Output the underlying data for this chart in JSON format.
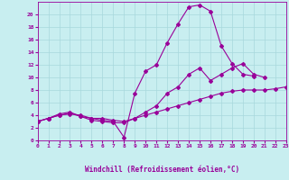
{
  "xlabel": "Windchill (Refroidissement éolien,°C)",
  "bg_color": "#c8eef0",
  "grid_color": "#a8d8dc",
  "line_color": "#990099",
  "xlim": [
    0,
    23
  ],
  "ylim": [
    0,
    22
  ],
  "xticks": [
    0,
    1,
    2,
    3,
    4,
    5,
    6,
    7,
    8,
    9,
    10,
    11,
    12,
    13,
    14,
    15,
    16,
    17,
    18,
    19,
    20,
    21,
    22,
    23
  ],
  "yticks": [
    0,
    2,
    4,
    6,
    8,
    10,
    12,
    14,
    16,
    18,
    20
  ],
  "line1_x": [
    0,
    1,
    2,
    3,
    4,
    5,
    6,
    7,
    8,
    9,
    10,
    11,
    12,
    13,
    14,
    15,
    16,
    17,
    18,
    19,
    20
  ],
  "line1_y": [
    3.0,
    3.5,
    4.0,
    4.2,
    4.0,
    3.5,
    3.2,
    3.0,
    0.5,
    7.5,
    11.0,
    12.0,
    15.5,
    18.5,
    21.2,
    21.5,
    20.5,
    15.0,
    12.2,
    10.5,
    10.2
  ],
  "line2_x": [
    0,
    1,
    2,
    3,
    4,
    5,
    6,
    7,
    8,
    9,
    10,
    11,
    12,
    13,
    14,
    15,
    16,
    17,
    18,
    19,
    20,
    21
  ],
  "line2_y": [
    3.0,
    3.5,
    4.2,
    4.5,
    3.8,
    3.2,
    3.0,
    2.8,
    2.8,
    3.5,
    4.5,
    5.5,
    7.5,
    8.5,
    10.5,
    11.5,
    9.5,
    10.5,
    11.5,
    12.2,
    10.5,
    10.0
  ],
  "line3_x": [
    0,
    1,
    2,
    3,
    4,
    5,
    6,
    7,
    8,
    9,
    10,
    11,
    12,
    13,
    14,
    15,
    16,
    17,
    18,
    19,
    20,
    21,
    22,
    23
  ],
  "line3_y": [
    3.0,
    3.5,
    4.0,
    4.3,
    3.8,
    3.5,
    3.5,
    3.2,
    3.0,
    3.5,
    4.0,
    4.5,
    5.0,
    5.5,
    6.0,
    6.5,
    7.0,
    7.5,
    7.8,
    8.0,
    8.0,
    8.0,
    8.2,
    8.5
  ]
}
